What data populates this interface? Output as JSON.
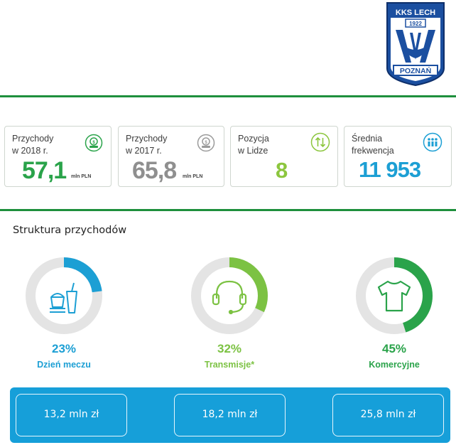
{
  "logo": {
    "name": "kks-lech-crest",
    "top_text": "KKS LECH",
    "year": "1922",
    "bottom_text": "POZNAŃ",
    "color": "#1b4fa0"
  },
  "kpis": [
    {
      "label": "Przychody\nw 2018 r.",
      "value": "57,1",
      "unit": "mln PLN",
      "color": "#2aa34a",
      "icon": "money-icon"
    },
    {
      "label": "Przychody\nw 2017 r.",
      "value": "65,8",
      "unit": "mln PLN",
      "color": "#8f8f8f",
      "icon": "money-icon"
    },
    {
      "label": "Pozycja\nw Lidze",
      "value": "8",
      "unit": "",
      "color": "#8cc63e",
      "icon": "up-down-arrows-icon"
    },
    {
      "label": "Średnia\nfrekwencja",
      "value": "11 953",
      "unit": "",
      "color": "#1c9fd4",
      "icon": "crowd-icon"
    }
  ],
  "section_title": "Struktura przychodów",
  "chart_data": {
    "type": "pie",
    "title": "Struktura przychodów",
    "categories": [
      "Dzień meczu",
      "Transmisje*",
      "Komercyjne"
    ],
    "values": [
      23,
      32,
      45
    ],
    "labels": [
      "23%",
      "32%",
      "45%"
    ],
    "amounts": [
      "13,2 mln zł",
      "18,2 mln zł",
      "25,8 mln zł"
    ],
    "colors": [
      "#1c9fd4",
      "#7cc243",
      "#2aa34a"
    ],
    "icons": [
      "food-drink-icon",
      "headset-icon",
      "tshirt-icon"
    ]
  }
}
